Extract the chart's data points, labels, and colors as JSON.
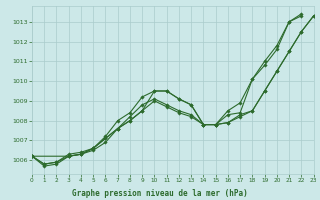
{
  "title": "Graphe pression niveau de la mer (hPa)",
  "bg_color": "#cce8e8",
  "grid_color": "#aacccc",
  "line_color": "#2d6b2d",
  "x_min": 0,
  "x_max": 23,
  "y_min": 1005.3,
  "y_max": 1013.8,
  "y_ticks": [
    1006,
    1007,
    1008,
    1009,
    1010,
    1011,
    1012,
    1013
  ],
  "x_ticks": [
    0,
    1,
    2,
    3,
    4,
    5,
    6,
    7,
    8,
    9,
    10,
    11,
    12,
    13,
    14,
    15,
    16,
    17,
    18,
    19,
    20,
    21,
    22,
    23
  ],
  "series": [
    [
      1006.2,
      1005.7,
      1005.8,
      1006.2,
      1006.3,
      1006.5,
      1006.9,
      1007.6,
      1008.0,
      1008.5,
      1009.5,
      1009.5,
      1009.1,
      1008.8,
      1007.8,
      1007.8,
      1008.3,
      1008.4,
      1010.1,
      1010.8,
      1011.6,
      1013.0,
      1013.3,
      null
    ],
    [
      1006.2,
      1005.8,
      1005.9,
      1006.2,
      1006.3,
      1006.6,
      1007.1,
      1007.6,
      1008.2,
      1008.8,
      1009.1,
      1008.8,
      1008.5,
      1008.3,
      1007.8,
      1007.8,
      1007.9,
      1008.3,
      1008.5,
      1009.5,
      1010.5,
      1011.5,
      1012.5,
      1013.3
    ],
    [
      1006.2,
      1005.8,
      1005.9,
      1006.3,
      1006.4,
      1006.6,
      1007.1,
      1007.6,
      1008.0,
      1008.5,
      1009.0,
      1008.7,
      1008.4,
      1008.2,
      1007.8,
      1007.8,
      1007.9,
      1008.2,
      1008.5,
      1009.5,
      1010.5,
      1011.5,
      1012.5,
      1013.3
    ],
    [
      1006.2,
      null,
      null,
      1006.2,
      1006.3,
      1006.6,
      1007.2,
      1008.0,
      1008.4,
      1009.2,
      1009.5,
      1009.5,
      1009.1,
      1008.8,
      1007.8,
      1007.8,
      1008.5,
      1008.9,
      1010.1,
      1011.0,
      1011.8,
      1013.0,
      1013.4,
      null
    ]
  ]
}
